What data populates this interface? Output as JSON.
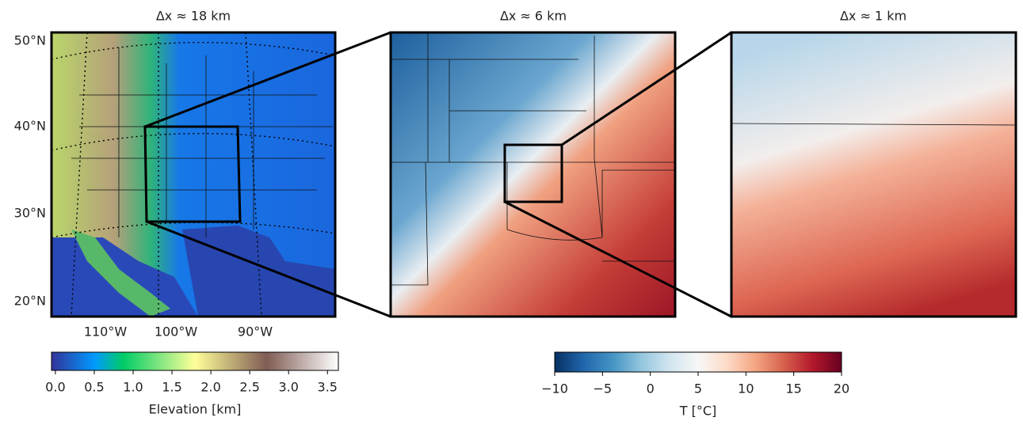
{
  "panels": [
    {
      "title": "Δx ≈ 18 km"
    },
    {
      "title": "Δx ≈ 6 km"
    },
    {
      "title": "Δx ≈ 1 km"
    }
  ],
  "lat_labels": [
    "50°N",
    "40°N",
    "30°N",
    "20°N"
  ],
  "lon_labels": [
    "110°W",
    "100°W",
    "90°W"
  ],
  "colorbars": [
    {
      "label": "Elevation [km]",
      "lim": [
        -0.05,
        3.64
      ],
      "ticks": [
        {
          "value": 0,
          "label": "0.0"
        },
        0.5,
        {
          "value": 1,
          "label": "1.0"
        },
        1.5,
        {
          "value": 2,
          "label": "2.0"
        },
        2.5,
        {
          "value": 3,
          "label": "3.0"
        },
        3.5
      ]
    },
    {
      "label": "T [°C]",
      "lim": [
        -10,
        20
      ],
      "ticks": [
        {
          "value": -10,
          "label": "−10"
        },
        {
          "value": -5,
          "label": "−5"
        },
        0,
        5,
        10,
        15,
        20
      ]
    }
  ]
}
